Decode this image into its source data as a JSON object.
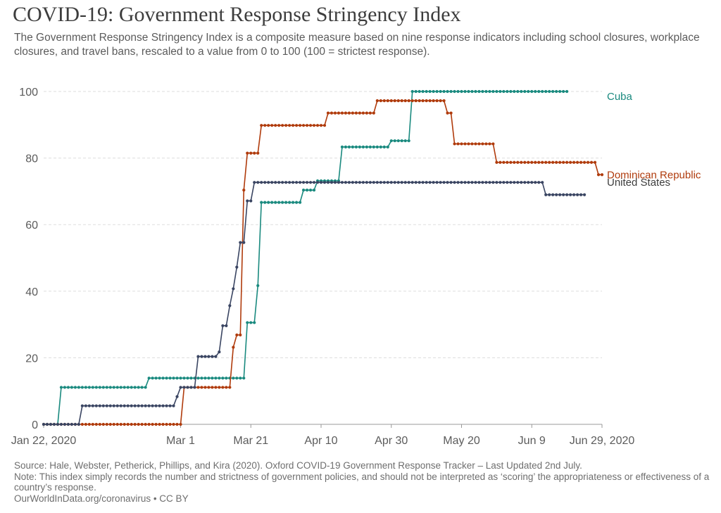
{
  "header": {
    "title": "COVID-19: Government Response Stringency Index",
    "subtitle": "The Government Response Stringency Index is a composite measure based on nine response indicators including school closures, workplace closures, and travel bans, rescaled to a value from 0 to 100 (100 = strictest response)."
  },
  "footer": {
    "source": "Source: Hale, Webster, Petherick, Phillips, and Kira (2020). Oxford COVID-19 Government Response Tracker – Last Updated 2nd July.",
    "note": "Note: This index simply records the number and strictness of government policies, and should not be interpreted as ‘scoring’ the appropriateness or effectiveness of a country’s response.",
    "credit": "OurWorldInData.org/coronavirus • CC BY"
  },
  "chart_data": {
    "type": "line",
    "xlim": [
      "2020-01-22",
      "2020-06-29"
    ],
    "ylim": [
      0,
      100
    ],
    "yticks": [
      0,
      20,
      40,
      60,
      80,
      100
    ],
    "xticks": [
      {
        "date": "2020-01-22",
        "label": "Jan 22, 2020"
      },
      {
        "date": "2020-03-01",
        "label": "Mar 1"
      },
      {
        "date": "2020-03-21",
        "label": "Mar 21"
      },
      {
        "date": "2020-04-10",
        "label": "Apr 10"
      },
      {
        "date": "2020-04-30",
        "label": "Apr 30"
      },
      {
        "date": "2020-05-20",
        "label": "May 20"
      },
      {
        "date": "2020-06-09",
        "label": "Jun 9"
      },
      {
        "date": "2020-06-29",
        "label": "Jun 29, 2020"
      }
    ],
    "grid": "horizontal dashed",
    "legend": "right-end labels",
    "series": [
      {
        "name": "Cuba",
        "color": "#1a8a7f",
        "end": "2020-06-19",
        "steps": [
          [
            "2020-01-22",
            0
          ],
          [
            "2020-01-27",
            11.11
          ],
          [
            "2020-02-21",
            13.89
          ],
          [
            "2020-03-20",
            30.56
          ],
          [
            "2020-03-23",
            41.67
          ],
          [
            "2020-03-24",
            66.67
          ],
          [
            "2020-04-05",
            70.37
          ],
          [
            "2020-04-09",
            73.15
          ],
          [
            "2020-04-16",
            83.33
          ],
          [
            "2020-04-30",
            85.19
          ],
          [
            "2020-05-06",
            100
          ]
        ]
      },
      {
        "name": "Dominican Republic",
        "color": "#b03b0c",
        "end": "2020-06-29",
        "steps": [
          [
            "2020-01-22",
            0
          ],
          [
            "2020-03-02",
            11.11
          ],
          [
            "2020-03-16",
            23.15
          ],
          [
            "2020-03-17",
            26.85
          ],
          [
            "2020-03-19",
            70.37
          ],
          [
            "2020-03-20",
            81.48
          ],
          [
            "2020-03-24",
            89.81
          ],
          [
            "2020-04-12",
            93.52
          ],
          [
            "2020-04-26",
            97.22
          ],
          [
            "2020-05-16",
            93.52
          ],
          [
            "2020-05-18",
            84.26
          ],
          [
            "2020-05-30",
            78.7
          ],
          [
            "2020-06-28",
            75
          ]
        ]
      },
      {
        "name": "United States",
        "color": "#3a4562",
        "end": "2020-06-24",
        "steps": [
          [
            "2020-01-22",
            0
          ],
          [
            "2020-02-02",
            5.56
          ],
          [
            "2020-02-29",
            8.33
          ],
          [
            "2020-03-01",
            11.11
          ],
          [
            "2020-03-06",
            20.37
          ],
          [
            "2020-03-12",
            21.76
          ],
          [
            "2020-03-13",
            29.63
          ],
          [
            "2020-03-15",
            35.65
          ],
          [
            "2020-03-16",
            40.74
          ],
          [
            "2020-03-17",
            47.22
          ],
          [
            "2020-03-18",
            54.63
          ],
          [
            "2020-03-20",
            67.13
          ],
          [
            "2020-03-22",
            72.69
          ],
          [
            "2020-06-13",
            68.98
          ]
        ]
      }
    ]
  }
}
